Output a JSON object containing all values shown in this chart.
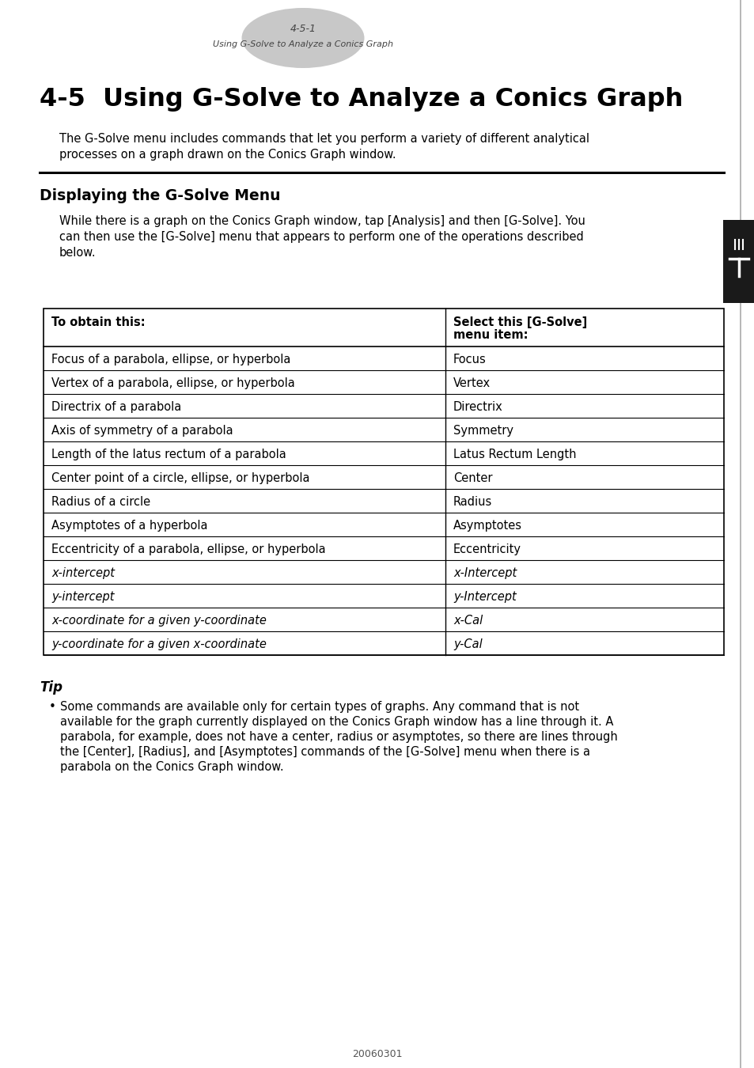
{
  "page_header_number": "4-5-1",
  "page_header_text": "Using G-Solve to Analyze a Conics Graph",
  "main_title": "4-5  Using G-Solve to Analyze a Conics Graph",
  "intro_text": "The G-Solve menu includes commands that let you perform a variety of different analytical\nprocesses on a graph drawn on the Conics Graph window.",
  "section_title": "Displaying the G-Solve Menu",
  "section_intro": "While there is a graph on the Conics Graph window, tap [Analysis] and then [G-Solve]. You\ncan then use the [G-Solve] menu that appears to perform one of the operations described\nbelow.",
  "table_header_col1": "To obtain this:",
  "table_header_col2_line1": "Select this [G-Solve]",
  "table_header_col2_line2": "menu item:",
  "table_rows": [
    [
      "Focus of a parabola, ellipse, or hyperbola",
      "Focus",
      false
    ],
    [
      "Vertex of a parabola, ellipse, or hyperbola",
      "Vertex",
      false
    ],
    [
      "Directrix of a parabola",
      "Directrix",
      false
    ],
    [
      "Axis of symmetry of a parabola",
      "Symmetry",
      false
    ],
    [
      "Length of the latus rectum of a parabola",
      "Latus Rectum Length",
      false
    ],
    [
      "Center point of a circle, ellipse, or hyperbola",
      "Center",
      false
    ],
    [
      "Radius of a circle",
      "Radius",
      false
    ],
    [
      "Asymptotes of a hyperbola",
      "Asymptotes",
      false
    ],
    [
      "Eccentricity of a parabola, ellipse, or hyperbola",
      "Eccentricity",
      false
    ],
    [
      "x-intercept",
      "x-Intercept",
      true
    ],
    [
      "y-intercept",
      "y-Intercept",
      true
    ],
    [
      "x-coordinate for a given y-coordinate",
      "x-Cal",
      true
    ],
    [
      "y-coordinate for a given x-coordinate",
      "y-Cal",
      true
    ]
  ],
  "tip_title": "Tip",
  "tip_text_lines": [
    "Some commands are available only for certain types of graphs. Any command that is not",
    "available for the graph currently displayed on the Conics Graph window has a line through it. A",
    "parabola, for example, does not have a center, radius or asymptotes, so there are lines through",
    "the [Center], [Radius], and [Asymptotes] commands of the [G-Solve] menu when there is a",
    "parabola on the Conics Graph window."
  ],
  "footer_text": "20060301",
  "bg_color": "#ffffff",
  "text_color": "#000000",
  "header_ellipse_color": "#c8c8c8",
  "side_tab_color": "#1a1a1a"
}
